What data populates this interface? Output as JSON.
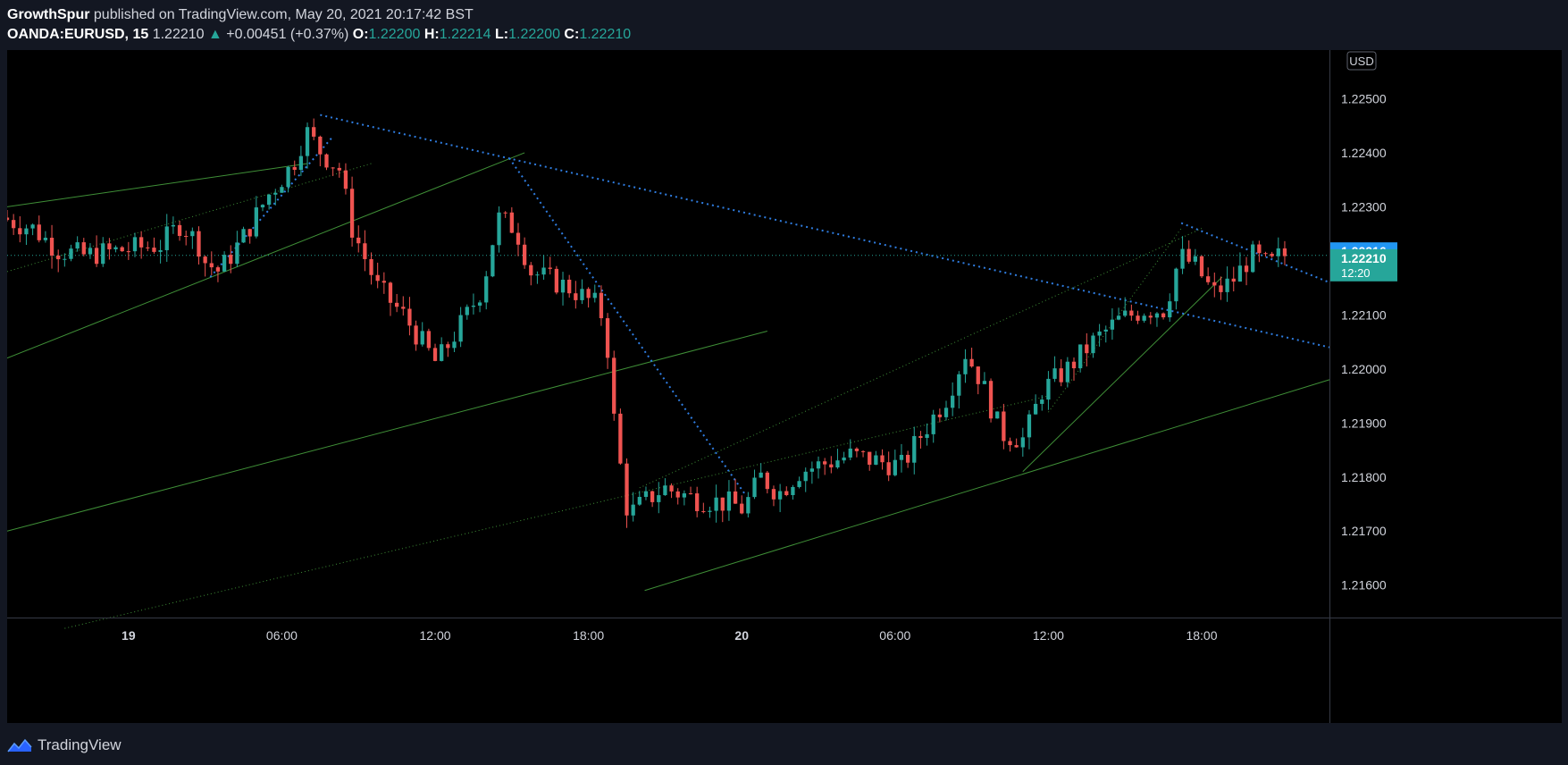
{
  "header": {
    "author": "GrowthSpur",
    "published_text": "published on TradingView.com, May 20, 2021 20:17:42 BST",
    "symbol": "OANDA:EURUSD, 15",
    "last": "1.22210",
    "change": "+0.00451 (+0.37%)",
    "open_label": "O:",
    "open": "1.22200",
    "high_label": "H:",
    "high": "1.22214",
    "low_label": "L:",
    "low": "1.22200",
    "close_label": "C:",
    "close": "1.22210"
  },
  "footer": {
    "brand": "TradingView"
  },
  "colors": {
    "background": "#000000",
    "page": "#131722",
    "bull": "#26a69a",
    "bear": "#ef5350",
    "trendline_green": "#3f8f37",
    "trendline_blue": "#2f7de1",
    "price_tag_blue": "#2196f3",
    "price_tag_teal": "#26a69a"
  },
  "chart_data": {
    "type": "candlestick",
    "currency": "USD",
    "y_ticks": [
      "1.22500",
      "1.22400",
      "1.22300",
      "1.22100",
      "1.22000",
      "1.21900",
      "1.21800",
      "1.21700",
      "1.21600"
    ],
    "ylim": [
      1.2154,
      1.2259
    ],
    "x_ticks": [
      {
        "label": "19",
        "h": 0,
        "bold": true
      },
      {
        "label": "06:00",
        "h": 6
      },
      {
        "label": "12:00",
        "h": 12
      },
      {
        "label": "18:00",
        "h": 18
      },
      {
        "label": "20",
        "h": 24,
        "bold": true
      },
      {
        "label": "06:00",
        "h": 30
      },
      {
        "label": "12:00",
        "h": 36
      },
      {
        "label": "18:00",
        "h": 42
      }
    ],
    "xlim_hours": [
      -4.75,
      47.0
    ],
    "price_tags": [
      {
        "price": 1.22216,
        "text": "1.22216",
        "style": "blue"
      },
      {
        "price": 1.2221,
        "text": "1.22210",
        "sub": "12:20",
        "style": "teal"
      }
    ],
    "anchors": [
      {
        "h": -4.75,
        "p": 1.2228
      },
      {
        "h": -3.5,
        "p": 1.2226
      },
      {
        "h": -2.5,
        "p": 1.2222
      },
      {
        "h": -1.5,
        "p": 1.2221
      },
      {
        "h": 0.0,
        "p": 1.2222
      },
      {
        "h": 1.5,
        "p": 1.2223
      },
      {
        "h": 2.3,
        "p": 1.2227
      },
      {
        "h": 3.0,
        "p": 1.2223
      },
      {
        "h": 3.2,
        "p": 1.222
      },
      {
        "h": 3.8,
        "p": 1.2218
      },
      {
        "h": 4.7,
        "p": 1.2224
      },
      {
        "h": 5.7,
        "p": 1.2232
      },
      {
        "h": 6.7,
        "p": 1.2238
      },
      {
        "h": 7.2,
        "p": 1.2244
      },
      {
        "h": 7.8,
        "p": 1.224
      },
      {
        "h": 8.5,
        "p": 1.2237
      },
      {
        "h": 9.0,
        "p": 1.2226
      },
      {
        "h": 10.0,
        "p": 1.2215
      },
      {
        "h": 11.0,
        "p": 1.221
      },
      {
        "h": 12.3,
        "p": 1.2201
      },
      {
        "h": 13.5,
        "p": 1.221
      },
      {
        "h": 14.1,
        "p": 1.2215
      },
      {
        "h": 14.7,
        "p": 1.2228
      },
      {
        "h": 15.4,
        "p": 1.2226
      },
      {
        "h": 16.0,
        "p": 1.2218
      },
      {
        "h": 17.5,
        "p": 1.2215
      },
      {
        "h": 18.5,
        "p": 1.2212
      },
      {
        "h": 18.9,
        "p": 1.2209
      },
      {
        "h": 19.3,
        "p": 1.2188
      },
      {
        "h": 19.8,
        "p": 1.2173
      },
      {
        "h": 20.6,
        "p": 1.2176
      },
      {
        "h": 21.2,
        "p": 1.2178
      },
      {
        "h": 22.4,
        "p": 1.2176
      },
      {
        "h": 23.9,
        "p": 1.2175
      },
      {
        "h": 24.3,
        "p": 1.2174
      },
      {
        "h": 25.0,
        "p": 1.218
      },
      {
        "h": 25.7,
        "p": 1.2177
      },
      {
        "h": 26.5,
        "p": 1.2181
      },
      {
        "h": 28.5,
        "p": 1.2184
      },
      {
        "h": 30.5,
        "p": 1.2182
      },
      {
        "h": 31.3,
        "p": 1.2188
      },
      {
        "h": 32.3,
        "p": 1.2195
      },
      {
        "h": 33.0,
        "p": 1.2203
      },
      {
        "h": 33.6,
        "p": 1.2198
      },
      {
        "h": 34.4,
        "p": 1.2188
      },
      {
        "h": 35.3,
        "p": 1.2187
      },
      {
        "h": 36.0,
        "p": 1.2196
      },
      {
        "h": 37.0,
        "p": 1.22
      },
      {
        "h": 38.0,
        "p": 1.2205
      },
      {
        "h": 39.0,
        "p": 1.2209
      },
      {
        "h": 40.0,
        "p": 1.2211
      },
      {
        "h": 40.8,
        "p": 1.2211
      },
      {
        "h": 41.4,
        "p": 1.2221
      },
      {
        "h": 42.0,
        "p": 1.2219
      },
      {
        "h": 42.7,
        "p": 1.2214
      },
      {
        "h": 43.4,
        "p": 1.2216
      },
      {
        "h": 44.2,
        "p": 1.2221
      },
      {
        "h": 44.9,
        "p": 1.2219
      },
      {
        "h": 45.3,
        "p": 1.2221
      }
    ],
    "trendlines": [
      {
        "name": "upper-channel",
        "style": "solid",
        "color": "green",
        "h1": -4.75,
        "p1": 1.223,
        "h2": 7.0,
        "p2": 1.2238
      },
      {
        "name": "rising-support-1",
        "style": "solid",
        "color": "green",
        "h1": -4.75,
        "p1": 1.2202,
        "h2": 15.5,
        "p2": 1.224
      },
      {
        "name": "rising-support-2",
        "style": "solid",
        "color": "green",
        "h1": -4.75,
        "p1": 1.217,
        "h2": 25.0,
        "p2": 1.2207
      },
      {
        "name": "lower-channel",
        "style": "solid",
        "color": "green",
        "h1": 20.2,
        "p1": 1.2159,
        "h2": 47.0,
        "p2": 1.2198
      },
      {
        "name": "wedge-support",
        "style": "solid",
        "color": "green",
        "h1": 35.0,
        "p1": 1.2181,
        "h2": 42.8,
        "p2": 1.2217
      },
      {
        "name": "dotted-median-1",
        "style": "dotted",
        "color": "green",
        "h1": -4.75,
        "p1": 1.2218,
        "h2": 9.5,
        "p2": 1.2238
      },
      {
        "name": "dotted-median-2",
        "style": "dotted",
        "color": "green",
        "h1": -2.5,
        "p1": 1.2152,
        "h2": 36.0,
        "p2": 1.2195
      },
      {
        "name": "dotted-median-3",
        "style": "dotted",
        "color": "green",
        "h1": 20.0,
        "p1": 1.2178,
        "h2": 42.0,
        "p2": 1.2226
      },
      {
        "name": "dotted-median-4",
        "style": "dotted",
        "color": "green",
        "h1": 36.0,
        "p1": 1.2192,
        "h2": 41.2,
        "p2": 1.2226
      },
      {
        "name": "descending-resistance",
        "style": "dotted",
        "color": "blue",
        "h1": 7.5,
        "p1": 1.2247,
        "h2": 47.0,
        "p2": 1.2204
      },
      {
        "name": "fall-line",
        "style": "dotted",
        "color": "blue",
        "h1": 14.9,
        "p1": 1.2239,
        "h2": 24.1,
        "p2": 1.2177
      },
      {
        "name": "steep-rise",
        "style": "dotted",
        "color": "blue",
        "h1": 3.2,
        "p1": 1.2217,
        "h2": 8.0,
        "p2": 1.2243
      },
      {
        "name": "short-resistance",
        "style": "dotted",
        "color": "blue",
        "h1": 41.2,
        "p1": 1.2227,
        "h2": 47.0,
        "p2": 1.2216
      }
    ],
    "current_price_line": 1.2221
  }
}
